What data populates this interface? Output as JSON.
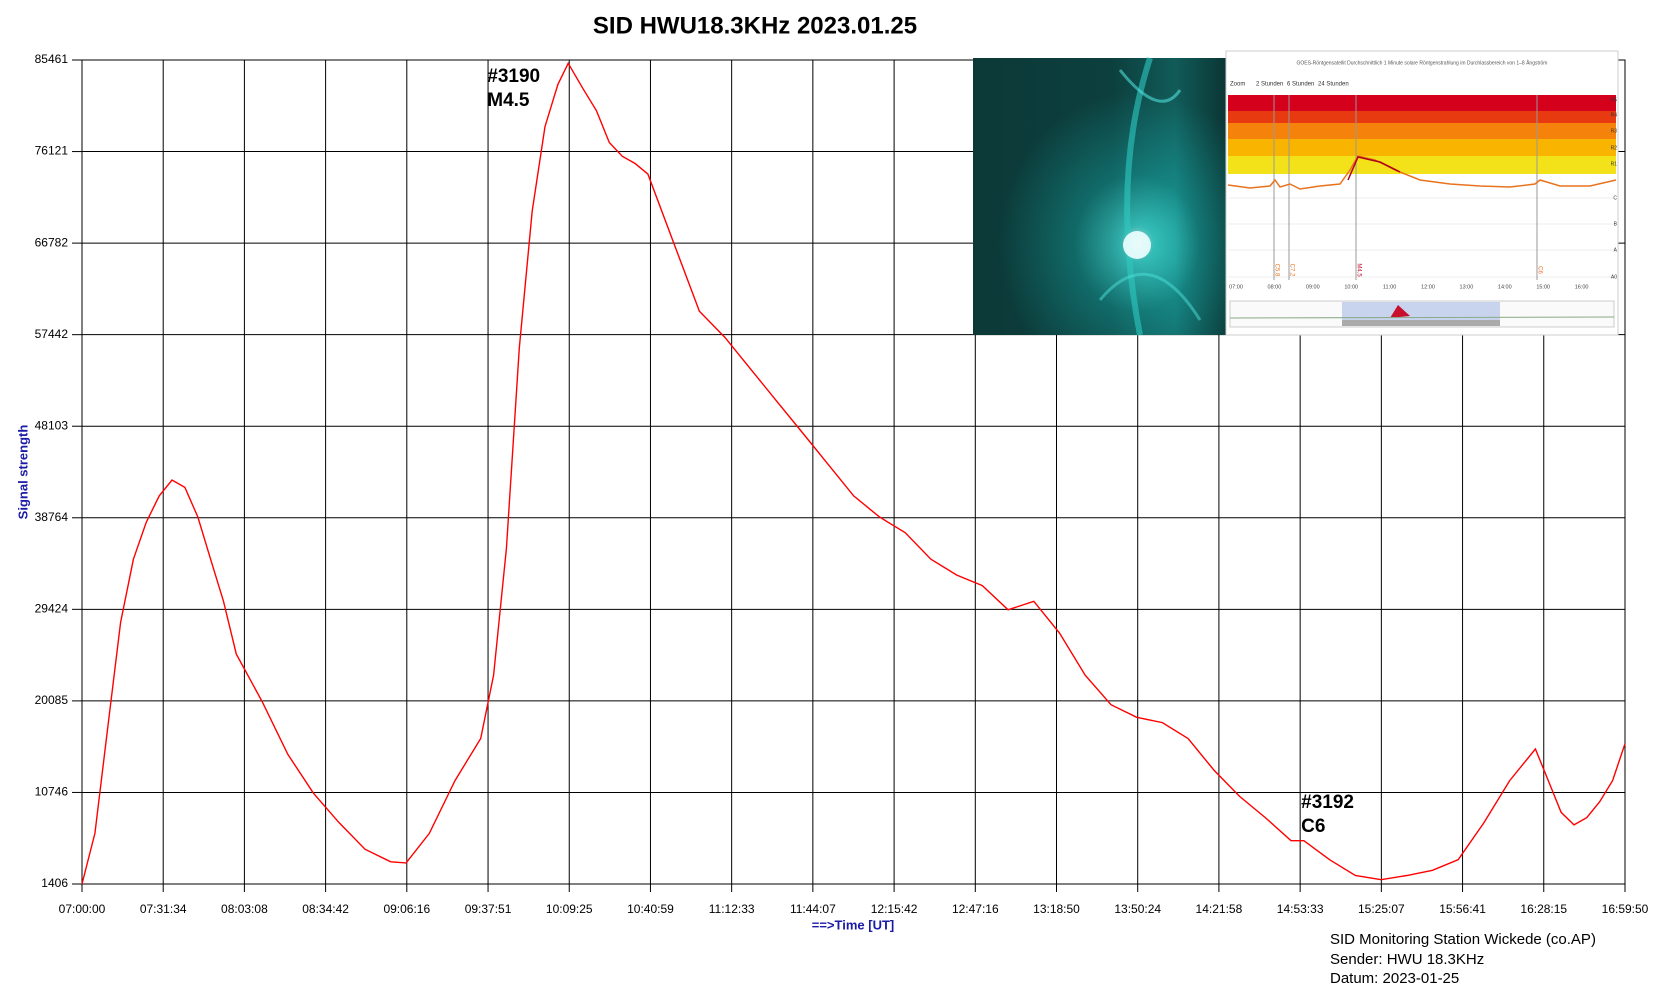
{
  "chart_data": {
    "type": "line",
    "title": "SID  HWU18.3KHz  2023.01.25",
    "y_label": "Signal strength",
    "x_label": "==>Time [UT]",
    "grid": true,
    "xlim": [
      "07:00:00",
      "16:59:50"
    ],
    "xticks": [
      "07:00:00",
      "07:31:34",
      "08:03:08",
      "08:34:42",
      "09:06:16",
      "09:37:51",
      "10:09:25",
      "10:40:59",
      "11:12:33",
      "11:44:07",
      "12:15:42",
      "12:47:16",
      "13:18:50",
      "13:50:24",
      "14:21:58",
      "14:53:33",
      "15:25:07",
      "15:56:41",
      "16:28:15",
      "16:59:50"
    ],
    "ylim": [
      1406,
      85461
    ],
    "yticks": [
      1406,
      10746,
      20085,
      29424,
      38764,
      48103,
      57442,
      66782,
      76121,
      85461
    ],
    "x": [
      "07:00:00",
      "07:05:00",
      "07:10:00",
      "07:15:00",
      "07:20:00",
      "07:25:00",
      "07:30:00",
      "07:35:00",
      "07:40:00",
      "07:45:00",
      "07:50:00",
      "07:55:00",
      "08:00:00",
      "08:10:00",
      "08:20:00",
      "08:30:00",
      "08:40:00",
      "08:50:00",
      "09:00:00",
      "09:06:00",
      "09:15:00",
      "09:25:00",
      "09:35:00",
      "09:40:00",
      "09:45:00",
      "09:50:00",
      "09:55:00",
      "10:00:00",
      "10:05:00",
      "10:09:00",
      "10:15:00",
      "10:20:00",
      "10:25:00",
      "10:30:00",
      "10:35:00",
      "10:40:00",
      "10:50:00",
      "11:00:00",
      "11:10:00",
      "11:20:00",
      "11:30:00",
      "11:40:00",
      "11:50:00",
      "12:00:00",
      "12:10:00",
      "12:20:00",
      "12:30:00",
      "12:40:00",
      "12:50:00",
      "13:00:00",
      "13:10:00",
      "13:20:00",
      "13:30:00",
      "13:40:00",
      "13:50:00",
      "14:00:00",
      "14:10:00",
      "14:20:00",
      "14:30:00",
      "14:40:00",
      "14:50:00",
      "14:55:00",
      "15:05:00",
      "15:15:00",
      "15:25:00",
      "15:35:00",
      "15:45:00",
      "15:55:00",
      "16:05:00",
      "16:15:00",
      "16:25:00",
      "16:30:00",
      "16:35:00",
      "16:40:00",
      "16:45:00",
      "16:50:00",
      "16:55:00",
      "16:59:50"
    ],
    "series": [
      {
        "name": "HWU18.3KHz",
        "color": "#ff0000",
        "values": [
          1406,
          6570,
          17330,
          28090,
          34540,
          38310,
          41000,
          42620,
          41860,
          38850,
          34540,
          30240,
          24860,
          20020,
          14640,
          10660,
          7650,
          4960,
          3670,
          3560,
          6570,
          11950,
          16250,
          22710,
          35620,
          56070,
          70060,
          78670,
          82970,
          85120,
          82430,
          80280,
          77050,
          75650,
          74900,
          73820,
          66830,
          59830,
          57140,
          53910,
          50690,
          47460,
          44230,
          41000,
          38850,
          37240,
          34540,
          32930,
          31850,
          29380,
          30240,
          27010,
          22710,
          19700,
          18410,
          17870,
          16250,
          13030,
          10340,
          8180,
          5820,
          5820,
          3880,
          2270,
          1840,
          2270,
          2800,
          3880,
          7650,
          11950,
          15180,
          11950,
          8720,
          7430,
          8180,
          9800,
          11950,
          15720
        ]
      }
    ],
    "annotations": [
      {
        "x": "10:09:25",
        "lines": [
          "#3190",
          "M4.5"
        ]
      },
      {
        "x": "14:53:33",
        "lines": [
          "#3192",
          "C6"
        ]
      }
    ],
    "footer": [
      "SID  Monitoring Station Wickede (co.AP)",
      "Sender: HWU 18.3KHz",
      "Datum: 2023-01-25"
    ],
    "inset": {
      "title": "GOES-Röntgensatellit Durchschnittlich 1 Minute solare Röntgenstrahlung im Durchlassbereich von 1–8 Ångström",
      "zoom": [
        "Zoom",
        "2 Stunden",
        "6 Stunden",
        "24 Stunden"
      ],
      "levels": [
        "R5",
        "R4",
        "R3",
        "R2",
        "R1",
        "C",
        "B",
        "A",
        "A0"
      ],
      "times": [
        "07:00",
        "08:00",
        "09:00",
        "10:00",
        "11:00",
        "12:00",
        "13:00",
        "14:00",
        "15:00",
        "16:00"
      ],
      "events": [
        "C5.8",
        "C7.2",
        "M4.5",
        "C6"
      ]
    }
  }
}
